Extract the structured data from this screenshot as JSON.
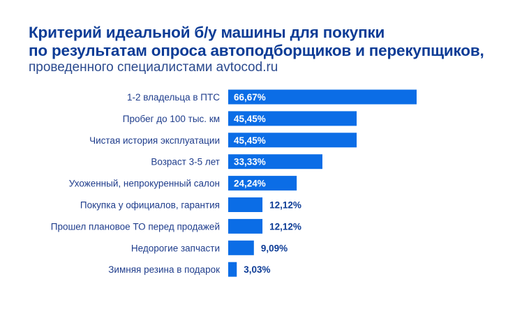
{
  "chart_data": {
    "type": "bar",
    "orientation": "horizontal",
    "title": [
      "Критерий идеальной б/у машины для покупки",
      "по результатам опроса автоподборщиков и перекупщиков,"
    ],
    "subtitle": "проведенного специалистами avtocod.ru",
    "categories": [
      "1-2 владельца в ПТС",
      "Пробег до 100 тыс. км",
      "Чистая история эксплуатации",
      "Возраст 3-5 лет",
      "Ухоженный, непрокуренный салон",
      "Покупка у официалов, гарантия",
      "Прошел плановое ТО перед продажей",
      "Недорогие запчасти",
      "Зимняя резина в подарок"
    ],
    "values": [
      66.67,
      45.45,
      45.45,
      33.33,
      24.24,
      12.12,
      12.12,
      9.09,
      3.03
    ],
    "value_labels": [
      "66,67%",
      "45,45%",
      "45,45%",
      "33,33%",
      "24,24%",
      "12,12%",
      "12,12%",
      "9,09%",
      "3,03%"
    ],
    "xlim": [
      0,
      100
    ],
    "grid": false,
    "legend": "none",
    "colors": {
      "bar": "#0b6de6",
      "title": "#0d3c96",
      "label": "#1f3d8c",
      "inside_label": "#ffffff"
    }
  }
}
